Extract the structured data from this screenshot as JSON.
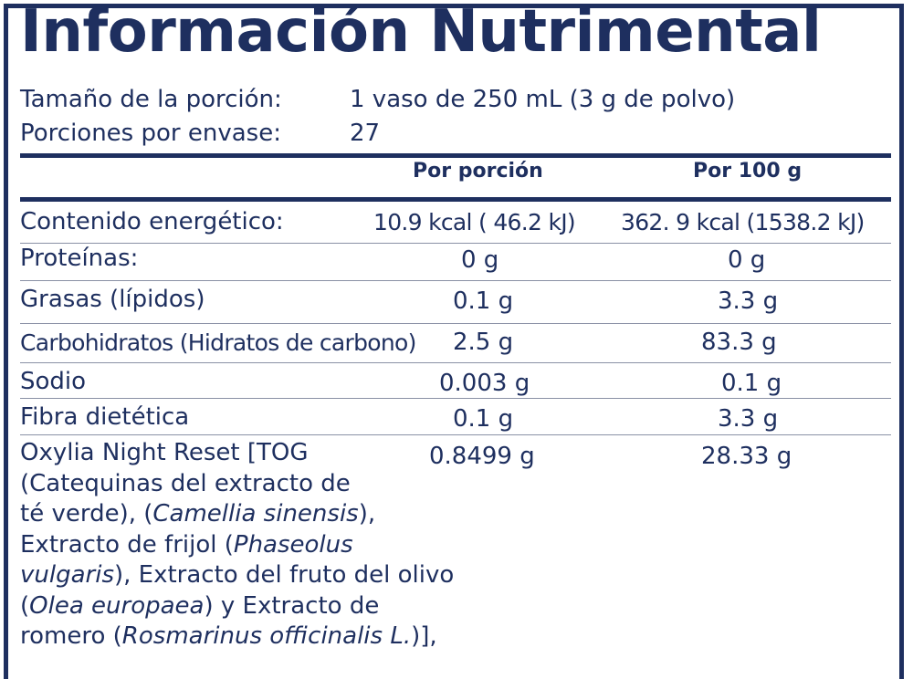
{
  "title": "Información Nutrimental",
  "serving": {
    "size_label": "Tamaño de la porción:",
    "size_value": "1 vaso de 250 mL (3 g de polvo)",
    "per_container_label": "Porciones por envase:",
    "per_container_value": "27"
  },
  "columns": {
    "per_serving": "Por porción",
    "per_100g": "Por 100 g"
  },
  "rows": [
    {
      "label": "Contenido energético:",
      "per_serving": "10.9 kcal ( 46.2 kJ)",
      "per_100g": "362. 9 kcal (1538.2 kJ)"
    },
    {
      "label": "Proteínas:",
      "per_serving": "0 g",
      "per_100g": "0 g"
    },
    {
      "label": "Grasas (lípidos)",
      "per_serving": "0.1 g",
      "per_100g": "3.3 g"
    },
    {
      "label": "Carbohidratos (Hidratos de carbono)",
      "per_serving": "2.5 g",
      "per_100g": "83.3 g"
    },
    {
      "label": "Sodio",
      "per_serving": "0.003 g",
      "per_100g": "0.1 g"
    },
    {
      "label": "Fibra dietética",
      "per_serving": "0.1 g",
      "per_100g": "3.3 g"
    }
  ],
  "ingredient": {
    "per_serving": "0.8499 g",
    "per_100g": "28.33 g",
    "lines": [
      {
        "a": "Oxylia Night Reset [TOG",
        "i": "",
        "b": ""
      },
      {
        "a": "(Catequinas del extracto de",
        "i": "",
        "b": ""
      },
      {
        "a": "té verde), (",
        "i": "Camellia sinensis",
        "b": "),"
      },
      {
        "a": "Extracto de frijol (",
        "i": "Phaseolus",
        "b": ""
      },
      {
        "a": "",
        "i": "vulgaris",
        "b": "), Extracto del fruto del olivo"
      },
      {
        "a": "(",
        "i": "Olea europaea",
        "b": ") y Extracto de"
      },
      {
        "a": "romero (",
        "i": "Rosmarinus officinalis L.",
        "b": ")],"
      }
    ]
  },
  "colors": {
    "ink": "#1e2f5f",
    "background": "#ffffff"
  }
}
